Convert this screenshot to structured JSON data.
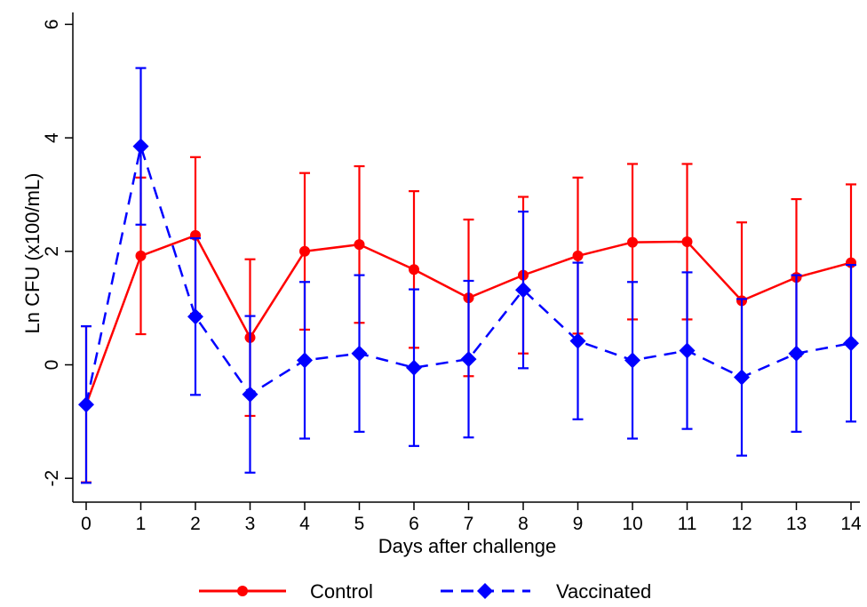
{
  "chart_data": {
    "type": "line",
    "xlabel": "Days after challenge",
    "ylabel": "Ln CFU (x100/mL)",
    "x": [
      0,
      1,
      2,
      3,
      4,
      5,
      6,
      7,
      8,
      9,
      10,
      11,
      12,
      13,
      14
    ],
    "xlim": [
      0,
      14
    ],
    "ylim": [
      -2.4,
      6.2
    ],
    "yticks": [
      -2,
      0,
      2,
      4,
      6
    ],
    "xticks": [
      0,
      1,
      2,
      3,
      4,
      5,
      6,
      7,
      8,
      9,
      10,
      11,
      12,
      13,
      14
    ],
    "grid": false,
    "legend_position": "bottom",
    "series": [
      {
        "name": "Control",
        "color": "#ff0000",
        "line_style": "solid",
        "marker": "circle",
        "values": [
          -0.7,
          1.92,
          2.28,
          0.48,
          2.0,
          2.12,
          1.68,
          1.18,
          1.58,
          1.92,
          2.16,
          2.17,
          1.13,
          1.54,
          1.8
        ],
        "lower": [
          -2.07,
          0.54,
          0.9,
          -0.9,
          0.62,
          0.74,
          0.3,
          -0.2,
          0.2,
          0.55,
          0.8,
          0.8,
          -0.25,
          0.15,
          0.42
        ],
        "upper": [
          0.68,
          3.3,
          3.66,
          1.86,
          3.38,
          3.5,
          3.06,
          2.56,
          2.96,
          3.3,
          3.54,
          3.54,
          2.51,
          2.92,
          3.18
        ]
      },
      {
        "name": "Vaccinated",
        "color": "#0000ff",
        "line_style": "dashed",
        "marker": "diamond",
        "values": [
          -0.7,
          3.85,
          0.85,
          -0.52,
          0.08,
          0.2,
          -0.05,
          0.1,
          1.32,
          0.42,
          0.08,
          0.25,
          -0.22,
          0.2,
          0.38
        ],
        "lower": [
          -2.08,
          2.47,
          -0.53,
          -1.9,
          -1.3,
          -1.18,
          -1.43,
          -1.28,
          -0.06,
          -0.96,
          -1.3,
          -1.13,
          -1.6,
          -1.18,
          -1.0
        ],
        "upper": [
          0.68,
          5.23,
          2.23,
          0.86,
          1.46,
          1.58,
          1.33,
          1.48,
          2.7,
          1.8,
          1.46,
          1.63,
          1.16,
          1.58,
          1.76
        ]
      }
    ]
  }
}
